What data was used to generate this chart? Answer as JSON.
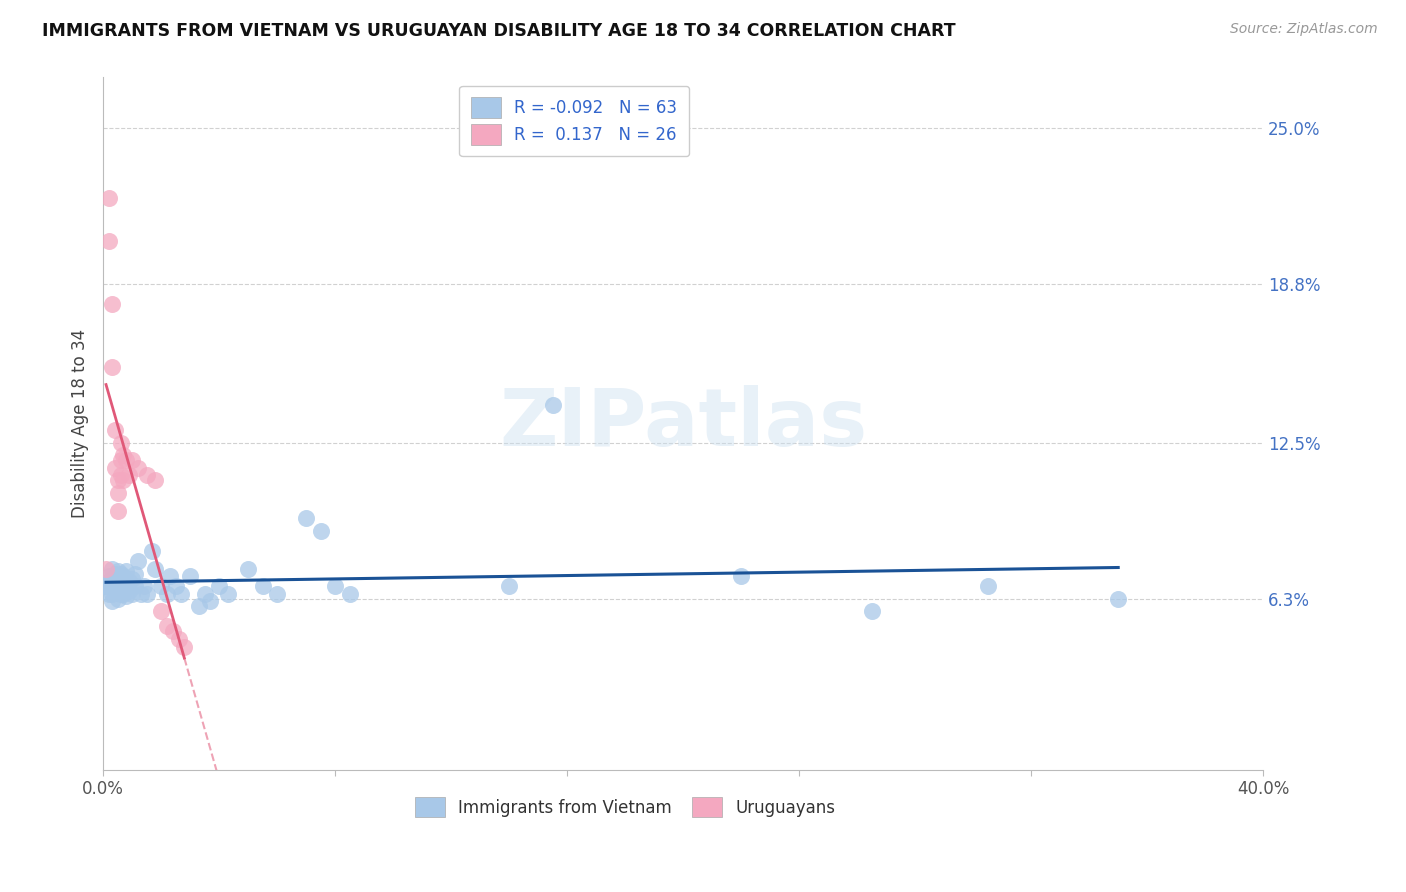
{
  "title": "IMMIGRANTS FROM VIETNAM VS URUGUAYAN DISABILITY AGE 18 TO 34 CORRELATION CHART",
  "source": "Source: ZipAtlas.com",
  "ylabel": "Disability Age 18 to 34",
  "xlim": [
    0.0,
    0.4
  ],
  "ylim": [
    -0.005,
    0.27
  ],
  "yticks": [
    0.063,
    0.125,
    0.188,
    0.25
  ],
  "ytick_labels": [
    "6.3%",
    "12.5%",
    "18.8%",
    "25.0%"
  ],
  "legend_bottom": [
    "Immigrants from Vietnam",
    "Uruguayans"
  ],
  "blue_color": "#a8c8e8",
  "pink_color": "#f4a8c0",
  "line_blue": "#1a5296",
  "line_pink": "#e05878",
  "vietnam_points": [
    [
      0.001,
      0.068
    ],
    [
      0.001,
      0.068
    ],
    [
      0.001,
      0.068
    ],
    [
      0.002,
      0.072
    ],
    [
      0.002,
      0.07
    ],
    [
      0.002,
      0.068
    ],
    [
      0.002,
      0.065
    ],
    [
      0.003,
      0.075
    ],
    [
      0.003,
      0.071
    ],
    [
      0.003,
      0.068
    ],
    [
      0.003,
      0.065
    ],
    [
      0.003,
      0.062
    ],
    [
      0.004,
      0.073
    ],
    [
      0.004,
      0.07
    ],
    [
      0.004,
      0.067
    ],
    [
      0.005,
      0.074
    ],
    [
      0.005,
      0.07
    ],
    [
      0.005,
      0.066
    ],
    [
      0.005,
      0.063
    ],
    [
      0.006,
      0.073
    ],
    [
      0.006,
      0.069
    ],
    [
      0.006,
      0.065
    ],
    [
      0.007,
      0.072
    ],
    [
      0.007,
      0.068
    ],
    [
      0.007,
      0.065
    ],
    [
      0.008,
      0.074
    ],
    [
      0.008,
      0.068
    ],
    [
      0.008,
      0.064
    ],
    [
      0.009,
      0.07
    ],
    [
      0.009,
      0.066
    ],
    [
      0.01,
      0.071
    ],
    [
      0.01,
      0.065
    ],
    [
      0.011,
      0.073
    ],
    [
      0.011,
      0.068
    ],
    [
      0.012,
      0.078
    ],
    [
      0.013,
      0.065
    ],
    [
      0.014,
      0.068
    ],
    [
      0.015,
      0.065
    ],
    [
      0.017,
      0.082
    ],
    [
      0.018,
      0.075
    ],
    [
      0.02,
      0.068
    ],
    [
      0.022,
      0.065
    ],
    [
      0.023,
      0.072
    ],
    [
      0.025,
      0.068
    ],
    [
      0.027,
      0.065
    ],
    [
      0.03,
      0.072
    ],
    [
      0.033,
      0.06
    ],
    [
      0.035,
      0.065
    ],
    [
      0.037,
      0.062
    ],
    [
      0.04,
      0.068
    ],
    [
      0.043,
      0.065
    ],
    [
      0.05,
      0.075
    ],
    [
      0.055,
      0.068
    ],
    [
      0.06,
      0.065
    ],
    [
      0.07,
      0.095
    ],
    [
      0.075,
      0.09
    ],
    [
      0.08,
      0.068
    ],
    [
      0.085,
      0.065
    ],
    [
      0.14,
      0.068
    ],
    [
      0.155,
      0.14
    ],
    [
      0.22,
      0.072
    ],
    [
      0.265,
      0.058
    ],
    [
      0.305,
      0.068
    ],
    [
      0.35,
      0.063
    ]
  ],
  "uruguay_points": [
    [
      0.001,
      0.075
    ],
    [
      0.002,
      0.222
    ],
    [
      0.002,
      0.205
    ],
    [
      0.003,
      0.18
    ],
    [
      0.003,
      0.155
    ],
    [
      0.004,
      0.13
    ],
    [
      0.004,
      0.115
    ],
    [
      0.005,
      0.11
    ],
    [
      0.005,
      0.105
    ],
    [
      0.005,
      0.098
    ],
    [
      0.006,
      0.125
    ],
    [
      0.006,
      0.118
    ],
    [
      0.006,
      0.112
    ],
    [
      0.007,
      0.12
    ],
    [
      0.007,
      0.11
    ],
    [
      0.008,
      0.118
    ],
    [
      0.009,
      0.112
    ],
    [
      0.01,
      0.118
    ],
    [
      0.012,
      0.115
    ],
    [
      0.015,
      0.112
    ],
    [
      0.018,
      0.11
    ],
    [
      0.02,
      0.058
    ],
    [
      0.022,
      0.052
    ],
    [
      0.024,
      0.05
    ],
    [
      0.026,
      0.047
    ],
    [
      0.028,
      0.044
    ]
  ]
}
